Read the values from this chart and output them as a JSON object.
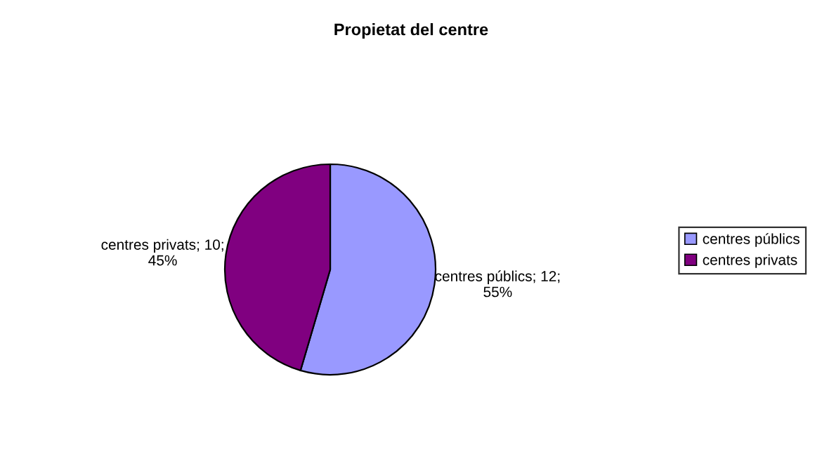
{
  "chart_data": {
    "type": "pie",
    "title": "Propietat del centre",
    "categories": [
      "centres públics",
      "centres privats"
    ],
    "values": [
      12,
      10
    ],
    "colors": [
      "#9999ff",
      "#800080"
    ],
    "value_labels": [
      "centres públics; 12;\n55%",
      "centres privats; 10;\n45%"
    ],
    "legend": "right"
  }
}
